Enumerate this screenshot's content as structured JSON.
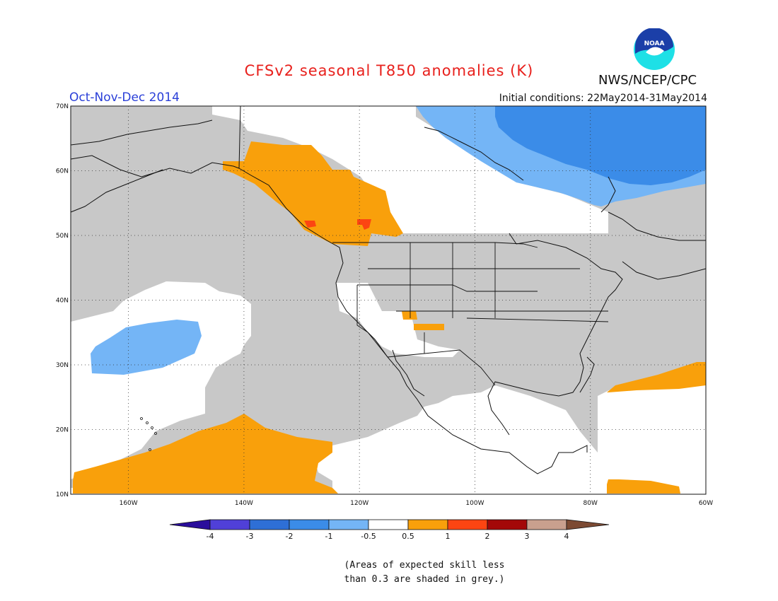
{
  "title": "CFSv2 seasonal T850 anomalies (K)",
  "period": "Oct-Nov-Dec 2014",
  "initial_conditions": "Initial conditions: 22May2014-31May2014",
  "agency": "NWS/NCEP/CPC",
  "logo_text": "NOAA",
  "colors": {
    "grey_low_skill": "#c8c8c8",
    "neutral": "#ffffff",
    "warm_0_5_1": "#f9a00b",
    "warm_1_2": "#fc4512",
    "cool_m1_m0_5": "#74b5f6",
    "cool_m2_m1": "#3b8ce8"
  },
  "lat_labels": [
    "70N",
    "60N",
    "50N",
    "40N",
    "30N",
    "20N",
    "10N"
  ],
  "lon_labels": [
    "160W",
    "140W",
    "120W",
    "100W",
    "80W",
    "60W"
  ],
  "colorbar": {
    "tick_labels": [
      "-4",
      "-3",
      "-2",
      "-1",
      "-0.5",
      "0.5",
      "1",
      "2",
      "3",
      "4"
    ],
    "colors": [
      "#2a0e9c",
      "#5040d8",
      "#2e6fd6",
      "#3b8ce8",
      "#74b5f6",
      "#ffffff",
      "#f9a00b",
      "#fc4512",
      "#a30808",
      "#c9a08e",
      "#7c4a33"
    ]
  },
  "note_line1": "(Areas of expected skill less",
  "note_line2": "than 0.3 are shaded in grey.)"
}
